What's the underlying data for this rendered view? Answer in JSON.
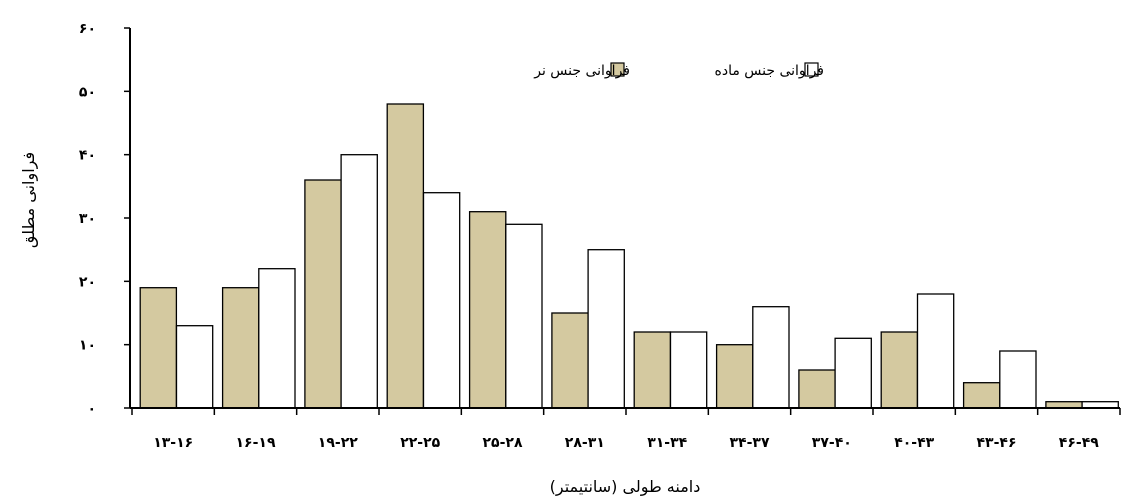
{
  "chart_data": {
    "type": "bar",
    "title": "",
    "xlabel": "دامنه طولی (سانتیمتر)",
    "ylabel": "فراوانی مطلق",
    "ylim": [
      0,
      60
    ],
    "yticks": [
      0,
      10,
      20,
      30,
      40,
      50,
      60
    ],
    "ytick_labels": [
      "۰",
      "۱۰",
      "۲۰",
      "۳۰",
      "۴۰",
      "۵۰",
      "۶۰"
    ],
    "categories": [
      "۱۳-۱۶",
      "۱۶-۱۹",
      "۱۹-۲۲",
      "۲۲-۲۵",
      "۲۵-۲۸",
      "۲۸-۳۱",
      "۳۱-۳۴",
      "۳۴-۳۷",
      "۳۷-۴۰",
      "۴۰-۴۳",
      "۴۳-۴۶",
      "۴۶-۴۹"
    ],
    "series": [
      {
        "name": "فراوانی جنس نر",
        "color": "#d4c9a0",
        "values": [
          19,
          19,
          36,
          48,
          31,
          15,
          12,
          10,
          6,
          12,
          4,
          1
        ]
      },
      {
        "name": "فراوانی جنس ماده",
        "color": "#ffffff",
        "values": [
          13,
          22,
          40,
          34,
          29,
          25,
          12,
          16,
          11,
          18,
          9,
          1
        ]
      }
    ],
    "legend_position": "top-right",
    "grid": false
  }
}
